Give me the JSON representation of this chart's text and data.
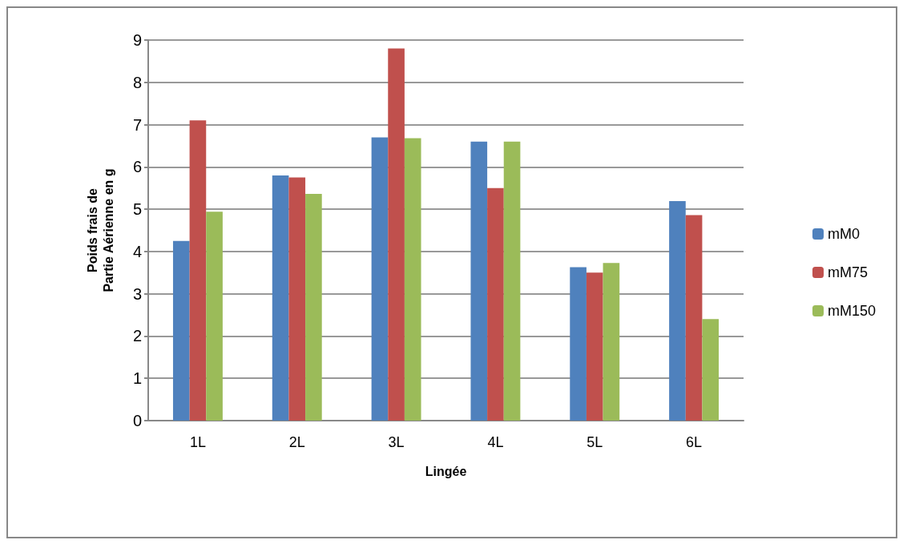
{
  "chart_data": {
    "type": "bar",
    "xlabel": "Lingée",
    "ylabel": "Poids frais de\nPartie Aérienne en g",
    "categories": [
      "1L",
      "2L",
      "3L",
      "4L",
      "5L",
      "6L"
    ],
    "series": [
      {
        "name": "mM0",
        "color": "#4f81bd",
        "values": [
          4.25,
          5.8,
          6.7,
          6.6,
          3.63,
          5.19
        ]
      },
      {
        "name": "mM75",
        "color": "#c0504d",
        "values": [
          7.1,
          5.75,
          8.8,
          5.5,
          3.5,
          4.86
        ]
      },
      {
        "name": "mM150",
        "color": "#9bbb59",
        "values": [
          4.94,
          5.36,
          6.68,
          6.6,
          3.73,
          2.4
        ]
      }
    ],
    "ylim": [
      0,
      9
    ],
    "yticks": [
      0,
      1,
      2,
      3,
      4,
      5,
      6,
      7,
      8,
      9
    ],
    "grid": "y",
    "legend": "right"
  }
}
